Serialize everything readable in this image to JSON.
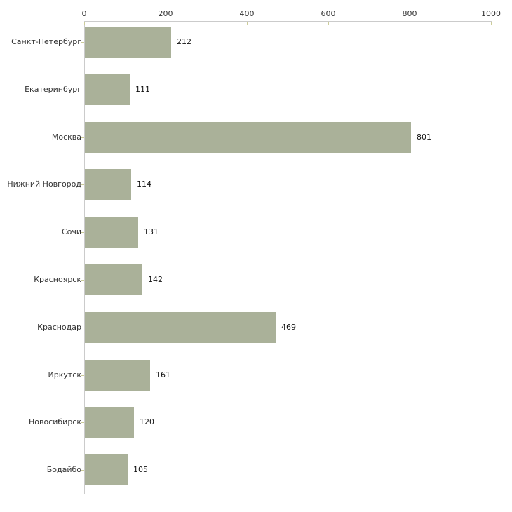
{
  "chart_data": {
    "type": "bar",
    "orientation": "horizontal",
    "categories": [
      "Санкт-Петербург",
      "Екатеринбург",
      "Москва",
      "Нижний Новгород",
      "Сочи",
      "Красноярск",
      "Краснодар",
      "Иркутск",
      "Новосибирск",
      "Бодайбо"
    ],
    "values": [
      212,
      111,
      801,
      114,
      131,
      142,
      469,
      161,
      120,
      105
    ],
    "x_ticks": [
      0,
      200,
      400,
      600,
      800,
      1000
    ],
    "xlim": [
      0,
      1000
    ],
    "axis_position": "top",
    "grid": false,
    "legend": false,
    "colors": {
      "bar": "#aab199",
      "axis_line": "#cbcbcb",
      "tick_mark": "#cccc99",
      "tick_text": "#333333",
      "category_text": "#333333",
      "value_text": "#111111",
      "background": "#ffffff"
    }
  }
}
